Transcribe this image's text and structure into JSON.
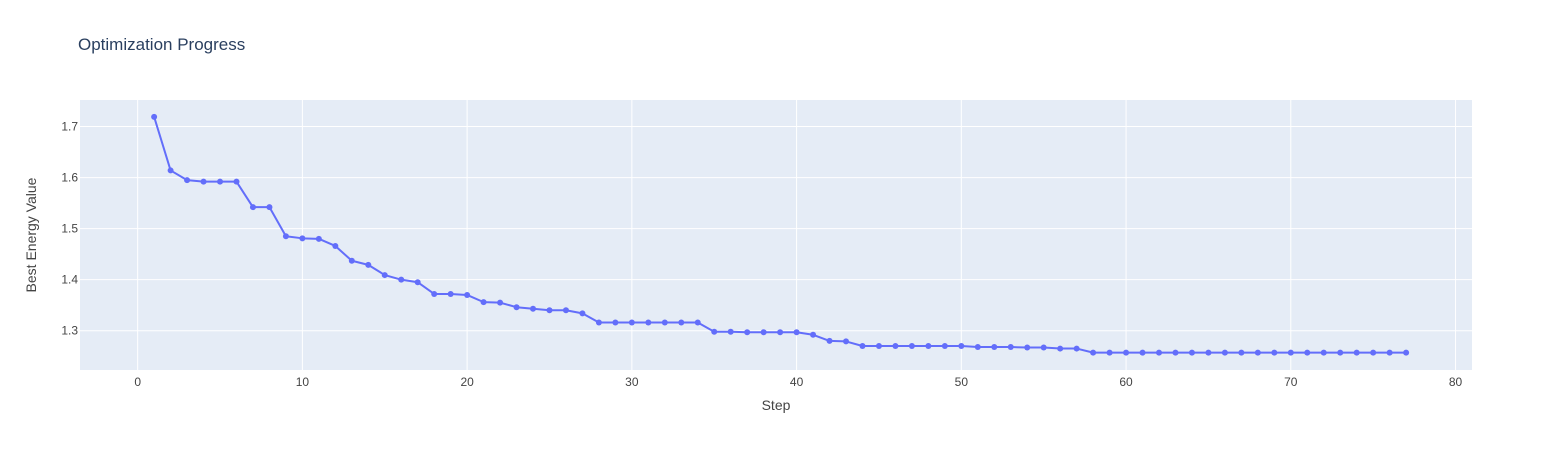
{
  "chart_data": {
    "type": "line",
    "title": "Optimization Progress",
    "xlabel": "Step",
    "ylabel": "Best Energy Value",
    "xlim": [
      -3.5,
      81
    ],
    "ylim": [
      1.223,
      1.752
    ],
    "xticks": [
      0,
      10,
      20,
      30,
      40,
      50,
      60,
      70,
      80
    ],
    "yticks": [
      1.3,
      1.4,
      1.5,
      1.6,
      1.7
    ],
    "grid": true,
    "colors": {
      "plot_bg": "#E5ECF6",
      "grid": "#ffffff",
      "series": "#636EFA",
      "title": "#2a3f5f"
    },
    "series": [
      {
        "mode": "lines+markers",
        "x": [
          1,
          2,
          3,
          4,
          5,
          6,
          7,
          8,
          9,
          10,
          11,
          12,
          13,
          14,
          15,
          16,
          17,
          18,
          19,
          20,
          21,
          22,
          23,
          24,
          25,
          26,
          27,
          28,
          29,
          30,
          31,
          32,
          33,
          34,
          35,
          36,
          37,
          38,
          39,
          40,
          41,
          42,
          43,
          44,
          45,
          46,
          47,
          48,
          49,
          50,
          51,
          52,
          53,
          54,
          55,
          56,
          57,
          58,
          59,
          60,
          61,
          62,
          63,
          64,
          65,
          66,
          67,
          68,
          69,
          70,
          71,
          72,
          73,
          74,
          75,
          76,
          77
        ],
        "y": [
          1.719,
          1.614,
          1.595,
          1.592,
          1.592,
          1.592,
          1.542,
          1.542,
          1.485,
          1.481,
          1.48,
          1.466,
          1.437,
          1.429,
          1.409,
          1.4,
          1.395,
          1.372,
          1.372,
          1.37,
          1.356,
          1.355,
          1.346,
          1.343,
          1.34,
          1.34,
          1.334,
          1.316,
          1.316,
          1.316,
          1.316,
          1.316,
          1.316,
          1.316,
          1.298,
          1.298,
          1.297,
          1.297,
          1.297,
          1.297,
          1.292,
          1.28,
          1.279,
          1.27,
          1.27,
          1.27,
          1.27,
          1.27,
          1.27,
          1.27,
          1.268,
          1.268,
          1.268,
          1.267,
          1.267,
          1.265,
          1.265,
          1.257,
          1.257,
          1.257,
          1.257,
          1.257,
          1.257,
          1.257,
          1.257,
          1.257,
          1.257,
          1.257,
          1.257,
          1.257,
          1.257,
          1.257,
          1.257,
          1.257,
          1.257,
          1.257,
          1.257
        ]
      }
    ]
  }
}
